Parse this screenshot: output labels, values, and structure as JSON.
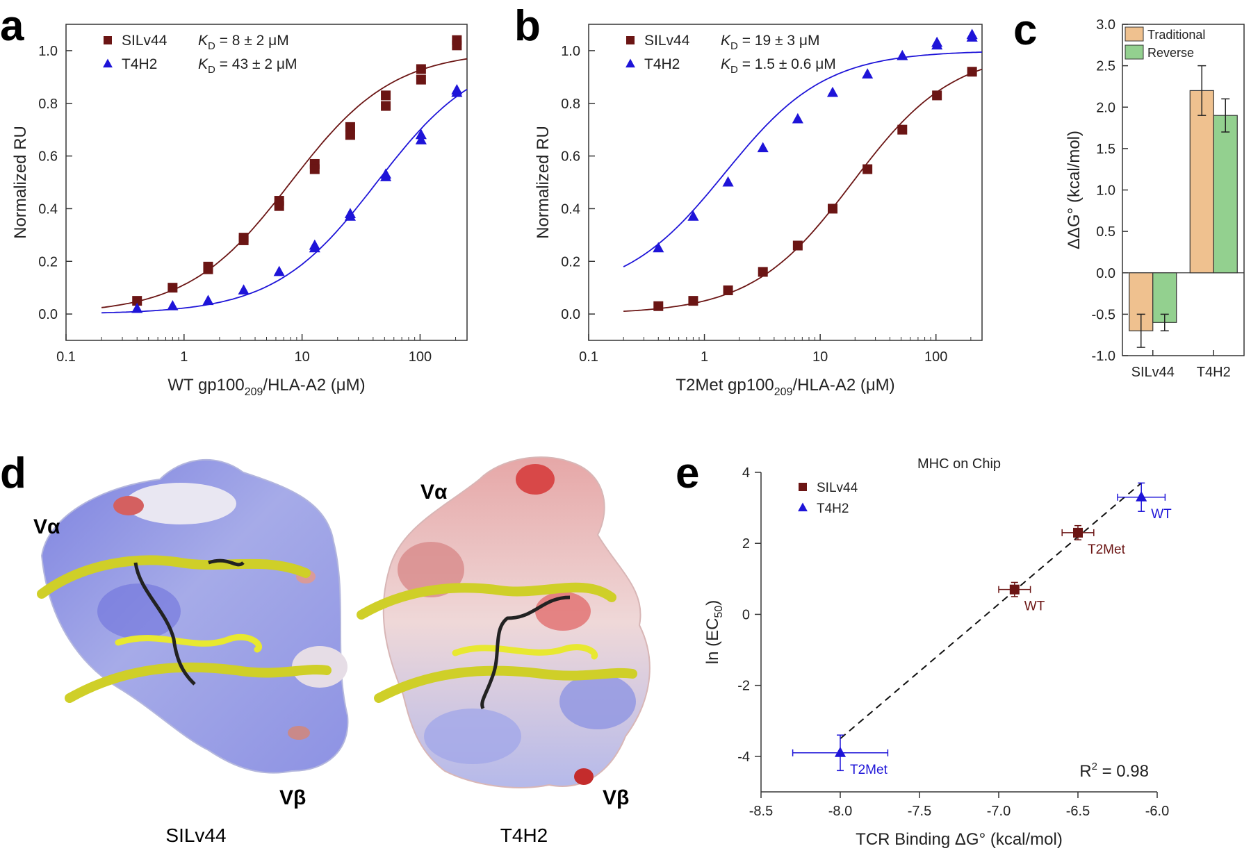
{
  "colors": {
    "silv44": "#6b1514",
    "t4h2": "#1e14d8",
    "traditional": "#efc18f",
    "reverse": "#93d08f",
    "helix": "#cfcf28",
    "peptide": "#222222"
  },
  "panels": {
    "a": {
      "letter": "a"
    },
    "b": {
      "letter": "b"
    },
    "c": {
      "letter": "c"
    },
    "d": {
      "letter": "d",
      "structures": [
        {
          "name": "SILv44",
          "valpha": "Vα",
          "vbeta": "Vβ"
        },
        {
          "name": "T4H2",
          "valpha": "Vα",
          "vbeta": "Vβ"
        }
      ]
    },
    "e": {
      "letter": "e"
    }
  },
  "chart_data": [
    {
      "panel": "a",
      "type": "scatter",
      "xscale": "log",
      "xlim": [
        0.1,
        250
      ],
      "ylim": [
        -0.1,
        1.1
      ],
      "xticks": [
        "0.1",
        "1",
        "10",
        "100"
      ],
      "yticks": [
        "0.0",
        "0.2",
        "0.4",
        "0.6",
        "0.8",
        "1.0"
      ],
      "xlabel": "WT gp100209/HLA-A2 (μM)",
      "ylabel": "Normalized RU",
      "legend": [
        {
          "name": "SILv44",
          "kd_label": "K",
          "kd_sub": "D",
          "kd_value": " = 8 ± 2 μM"
        },
        {
          "name": "T4H2",
          "kd_label": "K",
          "kd_sub": "D",
          "kd_value": " = 43 ± 2 μM"
        }
      ],
      "series": [
        {
          "name": "SILv44",
          "marker": "square",
          "kd": 8,
          "points": [
            [
              0.4,
              0.05
            ],
            [
              0.8,
              0.1
            ],
            [
              1.6,
              0.18
            ],
            [
              1.6,
              0.17
            ],
            [
              3.2,
              0.29
            ],
            [
              3.2,
              0.28
            ],
            [
              6.4,
              0.43
            ],
            [
              6.4,
              0.41
            ],
            [
              12.8,
              0.57
            ],
            [
              12.8,
              0.55
            ],
            [
              25.6,
              0.71
            ],
            [
              25.6,
              0.68
            ],
            [
              51.2,
              0.83
            ],
            [
              51.2,
              0.79
            ],
            [
              102,
              0.93
            ],
            [
              102,
              0.89
            ],
            [
              205,
              1.04
            ],
            [
              205,
              1.02
            ]
          ]
        },
        {
          "name": "T4H2",
          "marker": "triangle",
          "kd": 43,
          "points": [
            [
              0.4,
              0.02
            ],
            [
              0.8,
              0.03
            ],
            [
              1.6,
              0.05
            ],
            [
              3.2,
              0.09
            ],
            [
              6.4,
              0.16
            ],
            [
              12.8,
              0.26
            ],
            [
              12.8,
              0.25
            ],
            [
              25.6,
              0.38
            ],
            [
              25.6,
              0.37
            ],
            [
              51.2,
              0.53
            ],
            [
              51.2,
              0.52
            ],
            [
              102,
              0.68
            ],
            [
              102,
              0.66
            ],
            [
              205,
              0.85
            ],
            [
              205,
              0.84
            ]
          ]
        }
      ]
    },
    {
      "panel": "b",
      "type": "scatter",
      "xscale": "log",
      "xlim": [
        0.1,
        250
      ],
      "ylim": [
        -0.1,
        1.1
      ],
      "xticks": [
        "0.1",
        "1",
        "10",
        "100"
      ],
      "yticks": [
        "0.0",
        "0.2",
        "0.4",
        "0.6",
        "0.8",
        "1.0"
      ],
      "xlabel": "T2Met gp100209/HLA-A2 (μM)",
      "ylabel": "Normalized RU",
      "legend": [
        {
          "name": "SILv44",
          "kd_label": "K",
          "kd_sub": "D",
          "kd_value": " = 19 ± 3 μM"
        },
        {
          "name": "T4H2",
          "kd_label": "K",
          "kd_sub": "D",
          "kd_value": " = 1.5 ± 0.6 μM"
        }
      ],
      "series": [
        {
          "name": "SILv44",
          "marker": "square",
          "kd": 19,
          "points": [
            [
              0.4,
              0.03
            ],
            [
              0.8,
              0.05
            ],
            [
              1.6,
              0.09
            ],
            [
              3.2,
              0.16
            ],
            [
              6.4,
              0.26
            ],
            [
              12.8,
              0.4
            ],
            [
              25.6,
              0.55
            ],
            [
              51.2,
              0.7
            ],
            [
              102,
              0.83
            ],
            [
              205,
              0.92
            ]
          ]
        },
        {
          "name": "T4H2",
          "marker": "triangle",
          "kd": 1.5,
          "floor": 0.07,
          "points": [
            [
              0.4,
              0.25
            ],
            [
              0.8,
              0.37
            ],
            [
              1.6,
              0.5
            ],
            [
              3.2,
              0.63
            ],
            [
              6.4,
              0.74
            ],
            [
              12.8,
              0.84
            ],
            [
              25.6,
              0.91
            ],
            [
              51.2,
              0.98
            ],
            [
              102,
              1.03
            ],
            [
              102,
              1.02
            ],
            [
              205,
              1.06
            ],
            [
              205,
              1.05
            ]
          ]
        }
      ]
    },
    {
      "panel": "c",
      "type": "bar",
      "categories": [
        "SILv44",
        "T4H2"
      ],
      "ylim": [
        -1.0,
        3.0
      ],
      "yticks": [
        "-1.0",
        "-0.5",
        "0.0",
        "0.5",
        "1.0",
        "1.5",
        "2.0",
        "2.5",
        "3.0"
      ],
      "ylabel": "ΔΔG° (kcal/mol)",
      "legend_position": "top-left",
      "series": [
        {
          "name": "Traditional",
          "values": [
            -0.7,
            2.2
          ],
          "errors": [
            0.2,
            0.3
          ]
        },
        {
          "name": "Reverse",
          "values": [
            -0.6,
            1.9
          ],
          "errors": [
            0.1,
            0.2
          ]
        }
      ]
    },
    {
      "panel": "e",
      "type": "scatter",
      "title": "MHC on Chip",
      "xlim": [
        -8.5,
        -6.0
      ],
      "ylim": [
        -5,
        4
      ],
      "xticks": [
        "-8.5",
        "-8.0",
        "-7.5",
        "-7.0",
        "-6.5",
        "-6.0"
      ],
      "yticks": [
        "-4",
        "-2",
        "0",
        "2",
        "4"
      ],
      "xlabel": "TCR Binding ΔG° (kcal/mol)",
      "ylabel_main": "ln (EC",
      "ylabel_sub": "50",
      "ylabel_end": ")",
      "r2_label": "R",
      "r2_sup": "2",
      "r2_value": " = 0.98",
      "legend": [
        "SILv44",
        "T4H2"
      ],
      "fit_line": [
        [
          -8.0,
          -3.5
        ],
        [
          -6.1,
          3.7
        ]
      ],
      "series": [
        {
          "name": "SILv44",
          "marker": "square",
          "points": [
            {
              "x": -6.9,
              "y": 0.7,
              "xerr": 0.1,
              "yerr": 0.2,
              "label": "WT"
            },
            {
              "x": -6.5,
              "y": 2.3,
              "xerr": 0.1,
              "yerr": 0.2,
              "label": "T2Met"
            }
          ]
        },
        {
          "name": "T4H2",
          "marker": "triangle",
          "points": [
            {
              "x": -8.0,
              "y": -3.9,
              "xerr": 0.3,
              "yerr": 0.5,
              "label": "T2Met"
            },
            {
              "x": -6.1,
              "y": 3.3,
              "xerr": 0.15,
              "yerr": 0.4,
              "label": "WT"
            }
          ]
        }
      ]
    }
  ]
}
